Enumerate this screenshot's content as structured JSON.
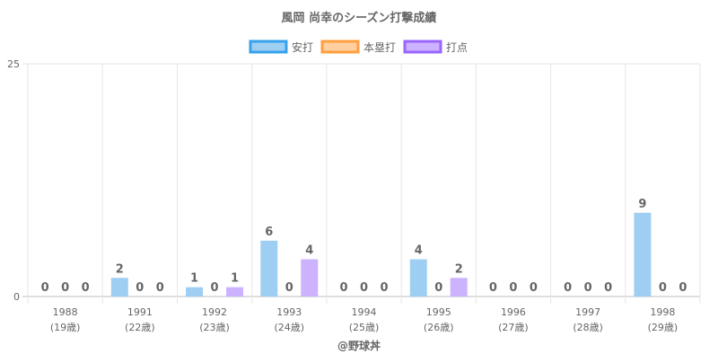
{
  "chart_data": {
    "type": "bar",
    "title": "風岡 尚幸のシーズン打撃成績",
    "categories": [
      "1988",
      "1991",
      "1992",
      "1993",
      "1994",
      "1995",
      "1996",
      "1997",
      "1998"
    ],
    "category_sublabels": [
      "(19歳)",
      "(22歳)",
      "(23歳)",
      "(24歳)",
      "(25歳)",
      "(26歳)",
      "(27歳)",
      "(28歳)",
      "(29歳)"
    ],
    "series": [
      {
        "name": "安打",
        "values": [
          0,
          2,
          1,
          6,
          0,
          4,
          0,
          0,
          9
        ],
        "fill": "#9ecff3",
        "stroke": "#36a2eb"
      },
      {
        "name": "本塁打",
        "values": [
          0,
          0,
          0,
          0,
          0,
          0,
          0,
          0,
          0
        ],
        "fill": "#ffcf9f",
        "stroke": "#ff9f40"
      },
      {
        "name": "打点",
        "values": [
          0,
          0,
          1,
          4,
          0,
          2,
          0,
          0,
          0
        ],
        "fill": "#ccb2ff",
        "stroke": "#9966ff"
      }
    ],
    "ylim": [
      0,
      25
    ],
    "yticks": [
      "0",
      "25"
    ],
    "xlabel": "@野球丼",
    "ylabel": "",
    "legend": "top",
    "grid": true,
    "data_labels": true
  }
}
